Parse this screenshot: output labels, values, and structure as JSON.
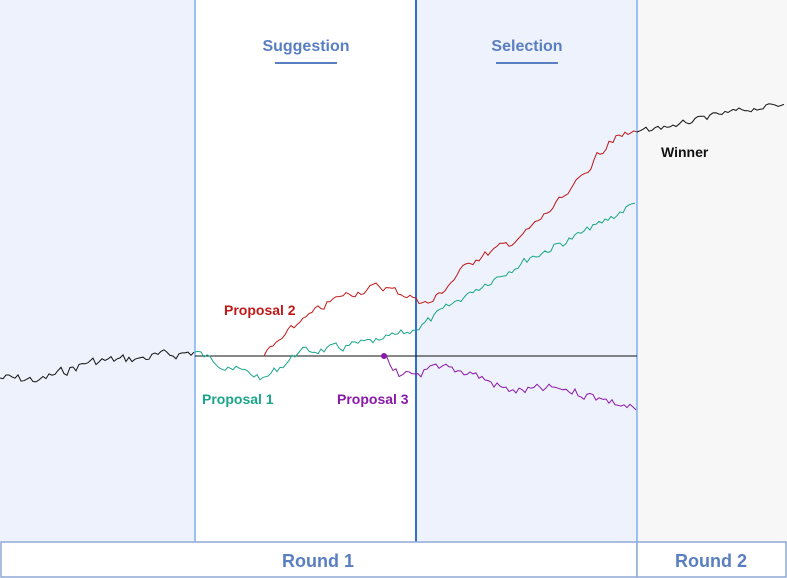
{
  "phases": [
    {
      "label": "Suggestion"
    },
    {
      "label": "Selection"
    }
  ],
  "rounds": [
    {
      "label": "Round 1"
    },
    {
      "label": "Round 2"
    }
  ],
  "series": [
    {
      "label": "Proposal 1",
      "color": "#1aa58a"
    },
    {
      "label": "Proposal 2",
      "color": "#c01818"
    },
    {
      "label": "Proposal 3",
      "color": "#8a18a8"
    },
    {
      "label": "Winner",
      "color": "#111111"
    }
  ],
  "colors": {
    "panel_blue": "#edf2fc",
    "panel_gray": "#f7f7f7",
    "divider": "#7fb0f0",
    "divider_strong": "#2f6fd0",
    "round_border": "#8fa9d6",
    "baseline": "#111111"
  }
}
